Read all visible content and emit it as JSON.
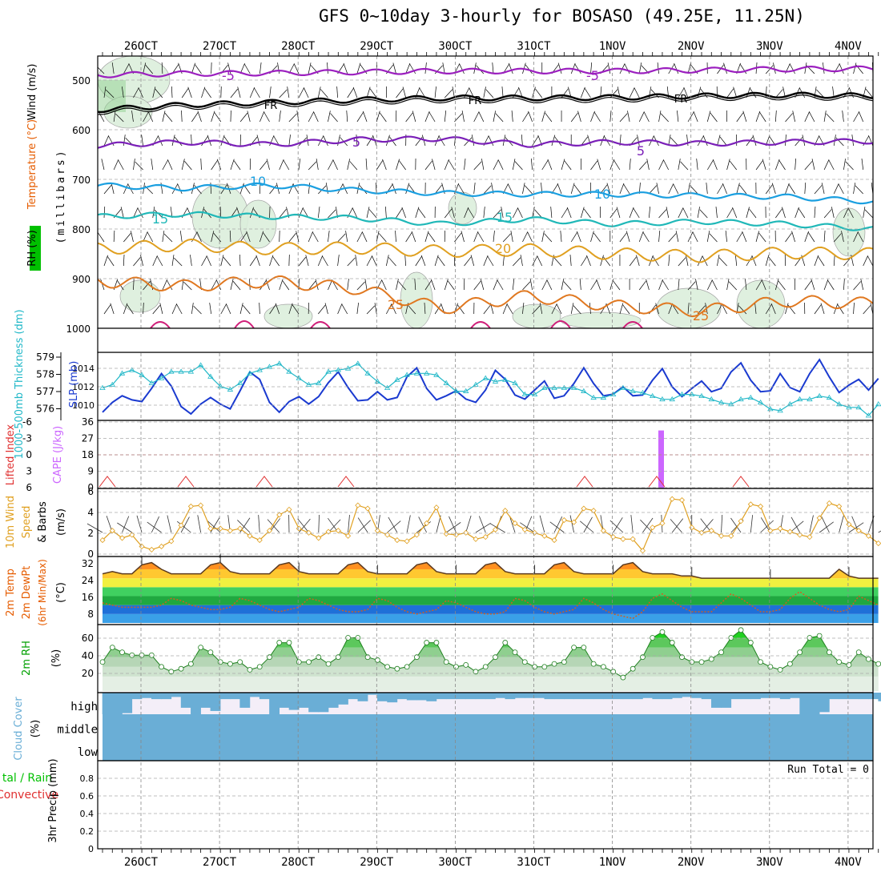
{
  "title": "GFS 0~10day 3-hourly for BOSASO (49.25E, 11.25N)",
  "colors": {
    "temperature_label": "#e65c00",
    "rh_label": "#00a000",
    "wind_label": "#000000",
    "slp": "#1a3ad0",
    "thickness": "#22b8c8",
    "cape": "#cc66ff",
    "lifted_index": "#e03030",
    "wind10m": "#e0a020",
    "cloud": "#6aaed6",
    "precip_total": "#00c000",
    "precip_conv": "#e03030"
  },
  "date_labels": [
    "26OCT",
    "27OCT",
    "28OCT",
    "29OCT",
    "30OCT",
    "31OCT",
    "1NOV",
    "2NOV",
    "3NOV",
    "4NOV"
  ],
  "panels": {
    "upper_air": {
      "ylabel_rh": "RH (%)",
      "ylabel_temp": "Temperature (°C)",
      "ylabel_wind": "Wind (m/s)",
      "ylabel_unit": "(millibars)",
      "yticks": [
        "500",
        "600",
        "700",
        "800",
        "900",
        "1000"
      ],
      "contour_labels": [
        {
          "text": "-5",
          "level": "500"
        },
        {
          "text": "-5",
          "level": "500"
        },
        {
          "text": "FR",
          "level": "540"
        },
        {
          "text": "FR",
          "level": "540"
        },
        {
          "text": "FR",
          "level": "540"
        },
        {
          "text": "5",
          "level": "625"
        },
        {
          "text": "5",
          "level": "625"
        },
        {
          "text": "10",
          "level": "710"
        },
        {
          "text": "10",
          "level": "730"
        },
        {
          "text": "15",
          "level": "780"
        },
        {
          "text": "15",
          "level": "780"
        },
        {
          "text": "20",
          "level": "840"
        },
        {
          "text": "25",
          "level": "950"
        },
        {
          "text": "25",
          "level": "970"
        }
      ]
    },
    "thickness_slp": {
      "ylabel_left": "1000-500mb Thickness (dm)",
      "ylabel_right": "SLP (mb)",
      "left_ticks": [
        "579",
        "578",
        "577",
        "576"
      ],
      "right_ticks": [
        "1014",
        "1012",
        "1010"
      ]
    },
    "cape_li": {
      "ylabel_left": "Lifted Index",
      "ylabel_right": "CAPE (J/kg)",
      "left_ticks": [
        "-6",
        "-3",
        "0",
        "3",
        "6"
      ],
      "right_ticks": [
        "36",
        "27",
        "18",
        "9",
        "0"
      ]
    },
    "wind10m": {
      "ylabel_a": "10m Wind",
      "ylabel_b": "Speed",
      "ylabel_c": "& Barbs",
      "ylabel_unit": "(m/s)",
      "yticks": [
        "6",
        "4",
        "2",
        "0"
      ]
    },
    "temp2m": {
      "ylabel_a": "2m Temp",
      "ylabel_b": "2m DewPt",
      "ylabel_c": "(6hr Min/Max)",
      "ylabel_unit": "(°C)",
      "yticks": [
        "32",
        "24",
        "16",
        "8"
      ]
    },
    "rh2m": {
      "ylabel": "2m RH",
      "ylabel_unit": "(%)",
      "yticks": [
        "60",
        "40",
        "20"
      ]
    },
    "cloud": {
      "ylabel": "Cloud Cover",
      "ylabel_unit": "(%)",
      "levels": [
        "high",
        "middle",
        "low"
      ]
    },
    "precip": {
      "ylabel_a": "tal / Rain",
      "ylabel_b": "Convective",
      "ylabel_c": "3hr Precip (mm)",
      "yticks": [
        "0.8",
        "0.6",
        "0.4",
        "0.2",
        "0"
      ],
      "run_total": "Run Total = 0"
    }
  },
  "chart_data": [
    {
      "type": "line",
      "name": "upper-air cross section",
      "x": [
        "26OCT",
        "27OCT",
        "28OCT",
        "29OCT",
        "30OCT",
        "31OCT",
        "1NOV",
        "2NOV",
        "3NOV",
        "4NOV"
      ],
      "ylim": [
        1000,
        460
      ],
      "series": [
        {
          "name": "-5",
          "values": [
            490,
            487,
            486,
            484,
            482,
            482,
            482,
            480,
            478,
            477
          ]
        },
        {
          "name": "FR",
          "values": [
            560,
            550,
            545,
            540,
            536,
            536,
            535,
            532,
            530,
            532
          ]
        },
        {
          "name": "5",
          "values": [
            632,
            625,
            630,
            620,
            618,
            630,
            625,
            628,
            625,
            623
          ]
        },
        {
          "name": "10",
          "values": [
            712,
            718,
            712,
            722,
            728,
            730,
            730,
            733,
            735,
            745
          ]
        },
        {
          "name": "15",
          "values": [
            775,
            770,
            775,
            778,
            790,
            780,
            790,
            785,
            790,
            800
          ]
        },
        {
          "name": "20",
          "values": [
            840,
            832,
            840,
            838,
            845,
            842,
            850,
            855,
            848,
            850
          ]
        },
        {
          "name": "25",
          "values": [
            905,
            915,
            905,
            920,
            960,
            935,
            955,
            965,
            945,
            950
          ]
        }
      ]
    },
    {
      "type": "line",
      "name": "thickness & SLP",
      "x": [
        0,
        1,
        2,
        3,
        4,
        5,
        6,
        7,
        8,
        9,
        10,
        11,
        12,
        13,
        14,
        15,
        16,
        17,
        18,
        19,
        20,
        21,
        22,
        23,
        24,
        25,
        26,
        27,
        28,
        29,
        30,
        31,
        32,
        33,
        34,
        35,
        36,
        37,
        38,
        39,
        40,
        41,
        42,
        43,
        44,
        45,
        46,
        47,
        48,
        49,
        50,
        51,
        52,
        53,
        54,
        55,
        56,
        57,
        58,
        59,
        60,
        61,
        62,
        63,
        64,
        65,
        66,
        67,
        68,
        69,
        70,
        71,
        72,
        73,
        74,
        75,
        76,
        77,
        78,
        79
      ],
      "series": [
        {
          "name": "SLP",
          "ylim": [
            1008,
            1015.5
          ],
          "values": [
            1008.6,
            1009.8,
            1010.6,
            1010.1,
            1009.9,
            1011.5,
            1013.3,
            1011.8,
            1009.3,
            1008.4,
            1009.6,
            1010.4,
            1009.6,
            1009.0,
            1011.2,
            1013.5,
            1012.6,
            1009.8,
            1008.6,
            1009.9,
            1010.5,
            1009.6,
            1010.5,
            1012.2,
            1013.5,
            1011.6,
            1010.0,
            1010.1,
            1011.1,
            1010.1,
            1010.4,
            1012.9,
            1014.0,
            1011.5,
            1010.1,
            1010.6,
            1011.2,
            1010.2,
            1009.8,
            1011.3,
            1013.7,
            1012.6,
            1010.7,
            1010.2,
            1011.3,
            1012.4,
            1010.3,
            1010.6,
            1012.1,
            1014.0,
            1012.1,
            1010.6,
            1010.8,
            1011.7,
            1010.6,
            1010.7,
            1012.5,
            1013.9,
            1011.7,
            1010.5,
            1011.5,
            1012.4,
            1011.1,
            1011.5,
            1013.5,
            1014.6,
            1012.5,
            1011.1,
            1011.2,
            1013.3,
            1011.6,
            1011.1,
            1013.3,
            1015.0,
            1012.9,
            1011.0,
            1011.9,
            1012.6,
            1011.3,
            1012.7
          ]
        },
        {
          "name": "Thickness",
          "ylim": [
            575.5,
            579.3
          ],
          "values": [
            577.3,
            577.5,
            578.2,
            578.4,
            578.1,
            577.6,
            577.9,
            578.3,
            578.3,
            578.3,
            578.7,
            578.0,
            577.4,
            577.2,
            577.6,
            578.2,
            578.4,
            578.6,
            578.8,
            578.3,
            577.9,
            577.5,
            577.6,
            578.3,
            578.4,
            578.5,
            578.8,
            578.2,
            577.7,
            577.3,
            577.8,
            578.1,
            578.2,
            578.2,
            578.1,
            577.6,
            577.1,
            577.1,
            577.5,
            577.9,
            577.7,
            577.8,
            577.6,
            576.9,
            576.9,
            577.3,
            577.3,
            577.3,
            577.3,
            577.1,
            576.7,
            576.7,
            576.9,
            577.3,
            577.1,
            577.0,
            576.8,
            576.6,
            576.6,
            576.9,
            576.9,
            576.8,
            576.6,
            576.4,
            576.3,
            576.6,
            576.7,
            576.4,
            576.0,
            575.9,
            576.3,
            576.6,
            576.6,
            576.8,
            576.7,
            576.3,
            576.1,
            576.1,
            575.6,
            576.3
          ]
        }
      ]
    },
    {
      "type": "bar",
      "name": "CAPE",
      "x": [
        "1NOV 12Z"
      ],
      "values": [
        33
      ],
      "ylim": [
        0,
        36
      ]
    },
    {
      "type": "line",
      "name": "10m wind speed",
      "ylim": [
        0,
        6
      ],
      "values": [
        1.4,
        2.3,
        1.6,
        1.9,
        0.8,
        0.5,
        0.8,
        1.3,
        2.8,
        4.6,
        4.7,
        2.5,
        2.5,
        2.3,
        2.5,
        1.8,
        1.4,
        2.3,
        3.8,
        4.3,
        2.5,
        2.1,
        1.6,
        2.2,
        2.3,
        1.8,
        4.7,
        4.4,
        2.3,
        1.9,
        1.4,
        1.3,
        1.9,
        3.0,
        4.5,
        2.0,
        1.9,
        2.1,
        1.5,
        1.7,
        2.4,
        4.2,
        3.0,
        2.4,
        2.1,
        1.8,
        1.4,
        3.3,
        3.1,
        4.4,
        4.2,
        2.3,
        1.7,
        1.5,
        1.5,
        0.4,
        2.6,
        3.0,
        5.3,
        5.2,
        2.6,
        2.1,
        2.3,
        1.8,
        1.8,
        3.2,
        4.8,
        4.6,
        2.3,
        2.5,
        2.2,
        1.9,
        1.7,
        3.5,
        4.9,
        4.6,
        2.9,
        2.3,
        1.8,
        1.1
      ]
    },
    {
      "type": "area",
      "name": "2m temperature & dewpoint",
      "ylim": [
        4,
        33
      ],
      "series": [
        {
          "name": "Temp",
          "values": [
            26,
            27,
            26,
            26,
            30,
            31,
            28,
            26,
            26,
            26,
            26,
            30,
            31,
            27,
            26,
            26,
            26,
            26,
            30,
            31,
            27,
            26,
            26,
            26,
            26,
            30,
            31,
            27,
            26,
            26,
            26,
            26,
            30,
            31,
            27,
            26,
            26,
            26,
            26,
            30,
            31,
            27,
            26,
            26,
            26,
            26,
            30,
            31,
            27,
            26,
            26,
            26,
            26,
            30,
            31,
            27,
            26,
            26,
            26,
            25,
            25,
            24,
            24,
            24,
            24,
            24,
            24,
            24,
            24,
            24,
            24,
            24,
            24,
            24,
            24,
            28,
            25,
            24,
            24,
            24
          ]
        },
        {
          "name": "DewPt",
          "values": [
            13,
            12,
            11,
            11,
            11,
            11,
            12,
            15,
            14,
            12,
            11,
            10,
            10,
            11,
            15,
            14,
            12,
            10,
            9,
            10,
            11,
            15,
            14,
            12,
            10,
            9,
            9,
            10,
            15,
            14,
            11,
            9,
            8,
            9,
            10,
            14,
            13,
            11,
            9,
            8,
            8,
            9,
            15,
            14,
            11,
            9,
            8,
            9,
            10,
            15,
            13,
            10,
            8,
            7,
            6,
            9,
            15,
            17,
            14,
            11,
            9,
            9,
            9,
            13,
            17,
            15,
            12,
            9,
            9,
            10,
            15,
            18,
            15,
            12,
            10,
            9,
            10,
            16,
            14,
            12
          ]
        }
      ]
    },
    {
      "type": "area",
      "name": "2m RH",
      "ylim": [
        5,
        72
      ],
      "values": [
        35,
        50,
        45,
        42,
        42,
        42,
        30,
        25,
        28,
        33,
        50,
        45,
        35,
        33,
        35,
        27,
        30,
        40,
        55,
        55,
        35,
        35,
        40,
        33,
        40,
        60,
        60,
        40,
        37,
        30,
        28,
        30,
        40,
        55,
        55,
        35,
        30,
        32,
        25,
        30,
        40,
        55,
        45,
        35,
        30,
        30,
        33,
        35,
        50,
        50,
        33,
        30,
        25,
        19,
        28,
        40,
        60,
        66,
        55,
        40,
        35,
        35,
        38,
        45,
        60,
        68,
        55,
        35,
        30,
        27,
        33,
        45,
        60,
        62,
        45,
        35,
        32,
        45,
        38,
        33
      ]
    },
    {
      "type": "bar",
      "name": "cloud cover high",
      "ylim": [
        0,
        100
      ],
      "values": [
        100,
        100,
        95,
        30,
        25,
        30,
        30,
        20,
        70,
        100,
        70,
        85,
        30,
        30,
        70,
        20,
        30,
        100,
        70,
        80,
        70,
        90,
        90,
        70,
        55,
        30,
        40,
        10,
        40,
        45,
        30,
        35,
        35,
        40,
        30,
        30,
        30,
        30,
        30,
        30,
        25,
        30,
        25,
        25,
        25,
        30,
        30,
        30,
        30,
        30,
        30,
        30,
        30,
        30,
        30,
        25,
        30,
        30,
        25,
        20,
        25,
        30,
        70,
        70,
        30,
        30,
        30,
        25,
        25,
        30,
        25,
        100,
        100,
        90,
        30,
        30,
        30,
        30,
        30,
        40
      ]
    },
    {
      "type": "bar",
      "name": "3hr precip",
      "ylim": [
        0,
        1
      ],
      "values": [
        0
      ]
    }
  ]
}
